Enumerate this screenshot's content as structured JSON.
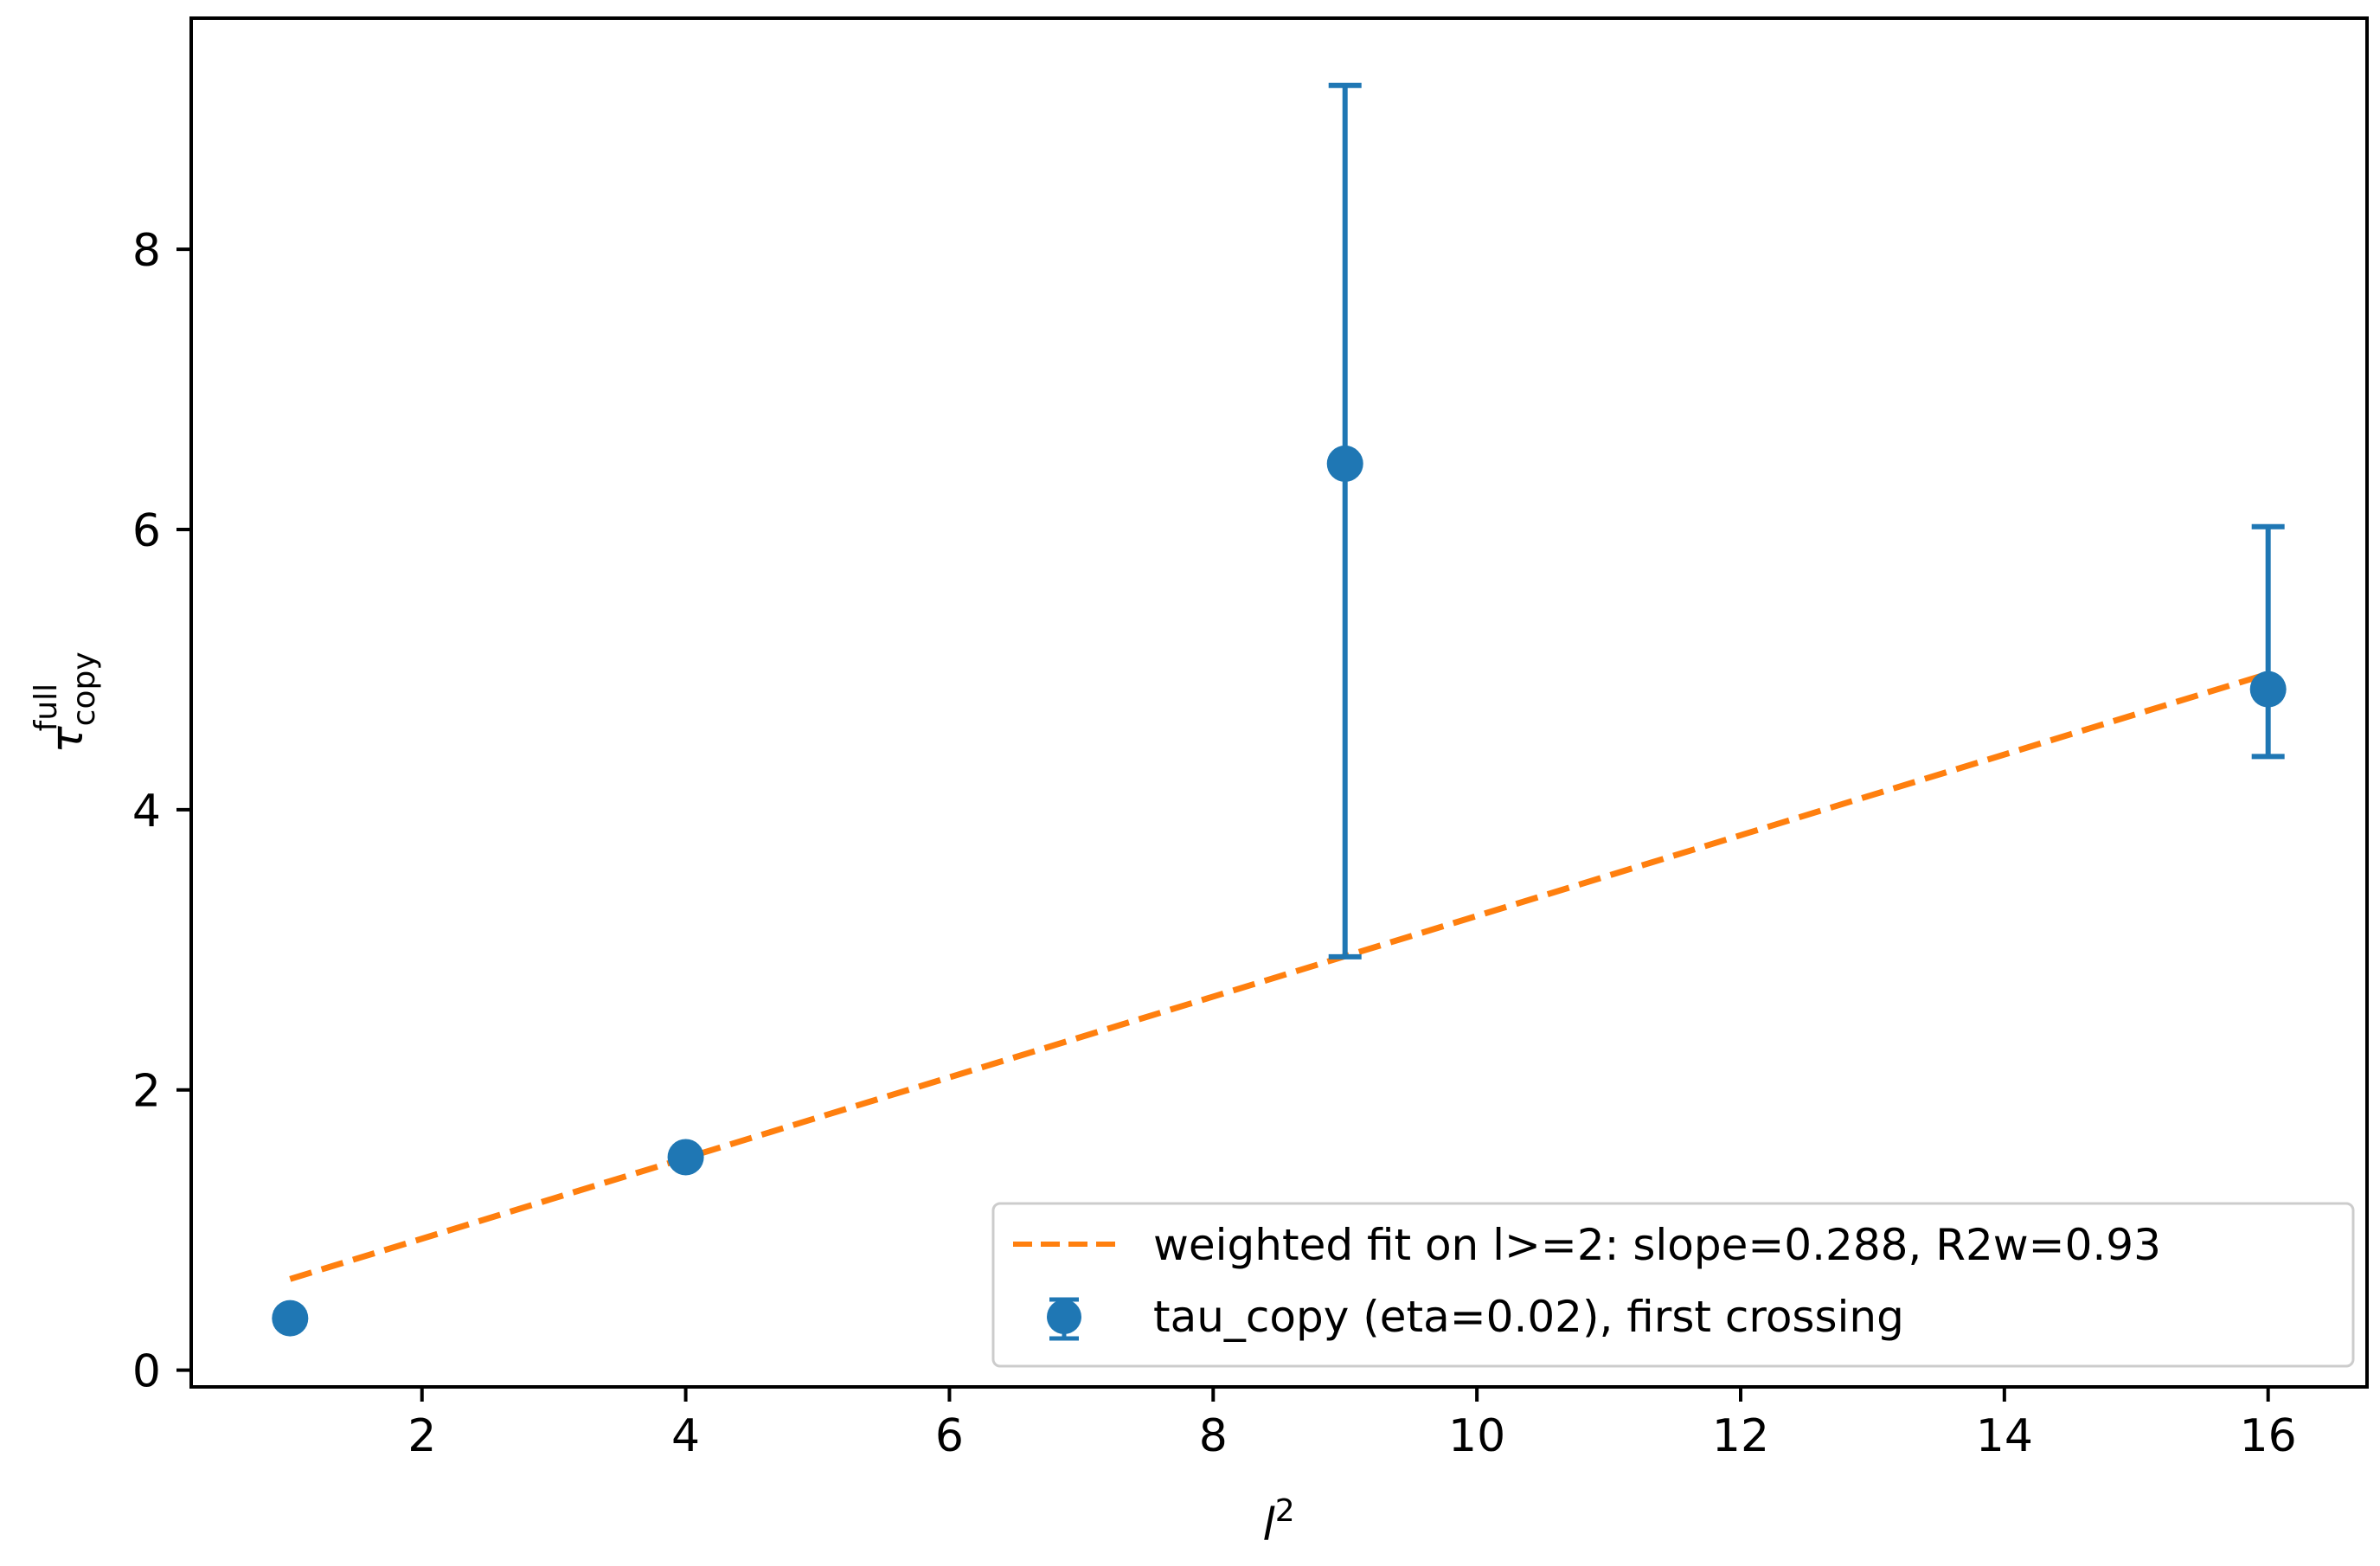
{
  "chart_data": {
    "type": "scatter",
    "xlabel": {
      "base": "l",
      "sup": "2"
    },
    "ylabel": {
      "base": "τ",
      "sup": "full",
      "sub": "copy"
    },
    "xlim": [
      0.25,
      16.75
    ],
    "ylim": [
      -0.12,
      9.65
    ],
    "xticks": [
      2,
      4,
      6,
      8,
      10,
      12,
      14,
      16
    ],
    "yticks": [
      0,
      2,
      4,
      6,
      8
    ],
    "grid": false,
    "legend_position": "lower right",
    "series": [
      {
        "name": "tau_copy (eta=0.02), first crossing",
        "kind": "errorbar",
        "color": "#1f77b4",
        "points": [
          {
            "x": 1,
            "y": 0.37,
            "ylow": 0.33,
            "yhigh": 0.41
          },
          {
            "x": 4,
            "y": 1.52,
            "ylow": 1.5,
            "yhigh": 1.54
          },
          {
            "x": 9,
            "y": 6.47,
            "ylow": 2.95,
            "yhigh": 9.17
          },
          {
            "x": 16,
            "y": 4.86,
            "ylow": 4.38,
            "yhigh": 6.02
          }
        ]
      },
      {
        "name": "weighted fit on l>=2: slope=0.288, R2w=0.93",
        "kind": "line",
        "style": "dashed",
        "color": "#ff7f0e",
        "x": [
          1,
          16
        ],
        "y": [
          0.65,
          4.97
        ]
      }
    ],
    "legend": [
      {
        "label": "weighted fit on l>=2: slope=0.288, R2w=0.93"
      },
      {
        "label": "tau_copy (eta=0.02), first crossing"
      }
    ]
  }
}
